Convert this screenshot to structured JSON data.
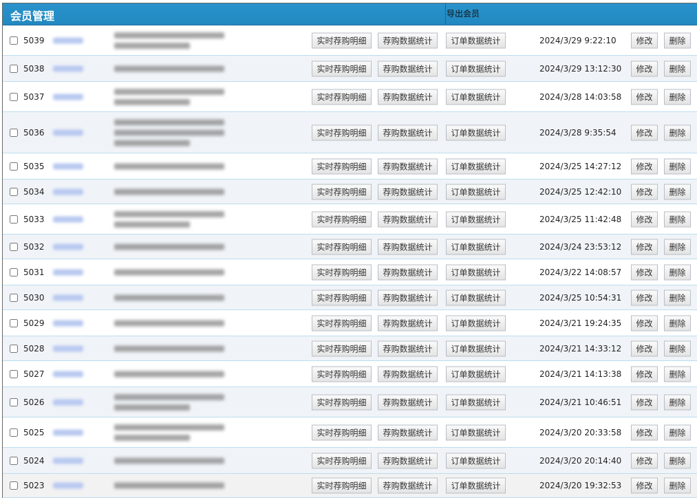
{
  "header": {
    "title": "会员管理",
    "export_label": "导出会员"
  },
  "buttons": {
    "detail": "实时荐购明细",
    "stats": "荐购数据统计",
    "orders": "订单数据统计",
    "edit": "修改",
    "delete": "删除"
  },
  "colors": {
    "header": "#2288c0",
    "row_alt": "#f0f4f8",
    "row_border": "#bcdcee"
  },
  "rows": [
    {
      "id": "5039",
      "date": "2024/3/29 9:22:10"
    },
    {
      "id": "5038",
      "date": "2024/3/29 13:12:30"
    },
    {
      "id": "5037",
      "date": "2024/3/28 14:03:58"
    },
    {
      "id": "5036",
      "date": "2024/3/28 9:35:54"
    },
    {
      "id": "5035",
      "date": "2024/3/25 14:27:12"
    },
    {
      "id": "5034",
      "date": "2024/3/25 12:42:10"
    },
    {
      "id": "5033",
      "date": "2024/3/25 11:42:48"
    },
    {
      "id": "5032",
      "date": "2024/3/24 23:53:12"
    },
    {
      "id": "5031",
      "date": "2024/3/22 14:08:57"
    },
    {
      "id": "5030",
      "date": "2024/3/25 10:54:31"
    },
    {
      "id": "5029",
      "date": "2024/3/21 19:24:35"
    },
    {
      "id": "5028",
      "date": "2024/3/21 14:33:12"
    },
    {
      "id": "5027",
      "date": "2024/3/21 14:13:38"
    },
    {
      "id": "5026",
      "date": "2024/3/21 10:46:51"
    },
    {
      "id": "5025",
      "date": "2024/3/20 20:33:58"
    },
    {
      "id": "5024",
      "date": "2024/3/20 20:14:40"
    },
    {
      "id": "5023",
      "date": "2024/3/20 19:32:53"
    }
  ]
}
